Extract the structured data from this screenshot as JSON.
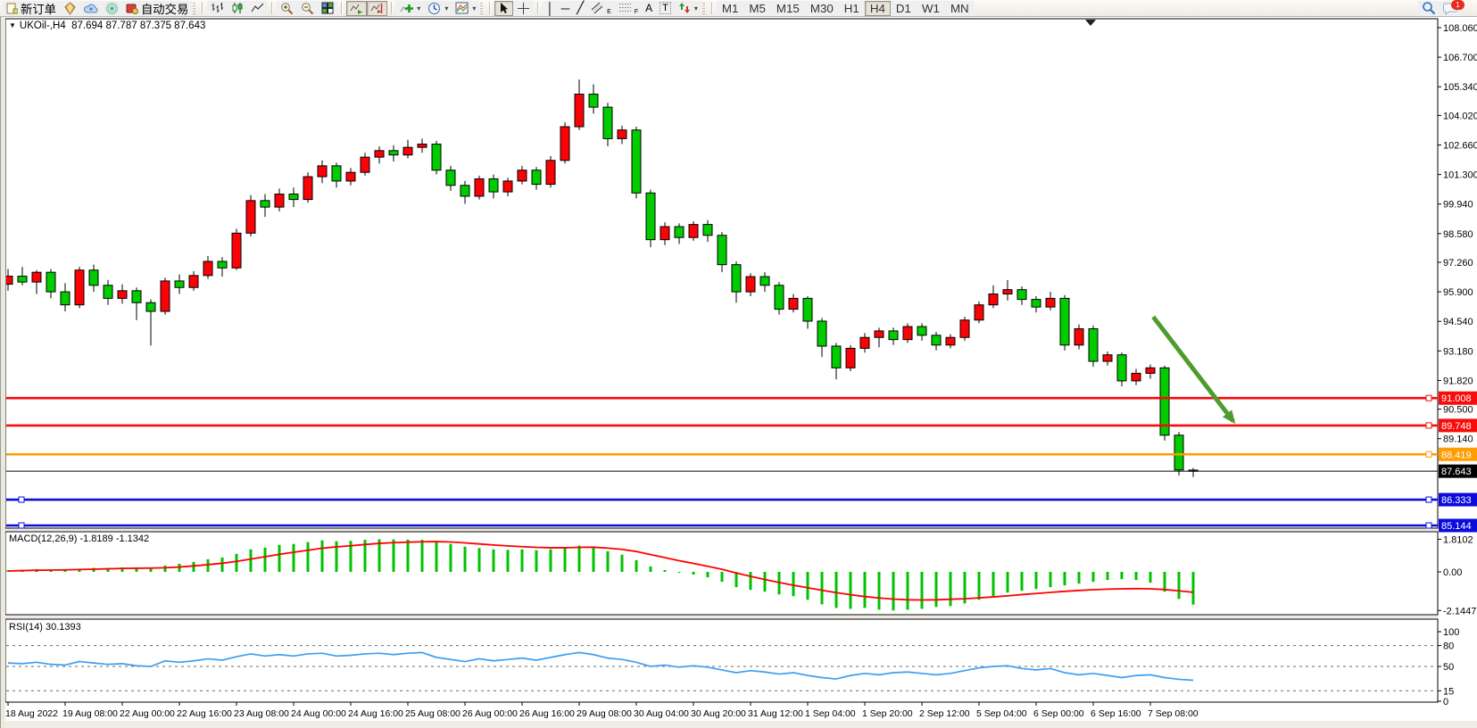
{
  "toolbar": {
    "new_order_label": "新订单",
    "autotrade_label": "自动交易",
    "notification_count": "1",
    "glyphs": {
      "caret": "▾",
      "vline": "│",
      "hline": "─",
      "trendline": "╱",
      "text_tool": "A",
      "text_label_tool": "T",
      "channel_tag": "E",
      "fibo_tag": "F"
    },
    "icon_names": [
      "new-order",
      "gold-diamond",
      "cloud",
      "signals",
      "autotrade",
      "bar-chart",
      "candlestick-chart",
      "line-chart",
      "zoom-in",
      "zoom-out",
      "tile-windows",
      "auto-scroll",
      "chart-shift",
      "indicators-add",
      "periods-clock",
      "templates",
      "cursor",
      "crosshair",
      "vertical-line",
      "horizontal-line",
      "trendline",
      "equidistant-channel",
      "fibonacci",
      "text",
      "text-label",
      "arrow-objects",
      "search",
      "notifications"
    ],
    "timeframes": [
      {
        "label": "M1",
        "active": false
      },
      {
        "label": "M5",
        "active": false
      },
      {
        "label": "M15",
        "active": false
      },
      {
        "label": "M30",
        "active": false
      },
      {
        "label": "H1",
        "active": false
      },
      {
        "label": "H4",
        "active": true
      },
      {
        "label": "D1",
        "active": false
      },
      {
        "label": "W1",
        "active": false
      },
      {
        "label": "MN",
        "active": false
      }
    ]
  },
  "chart": {
    "title": {
      "collapse_glyph": "▼",
      "symbol_tf": "UKOil-,H4",
      "ohlc": "87.694 87.787 87.375 87.643"
    },
    "macd_label": "MACD(12,26,9) -1.8189 -1.1342",
    "rsi_label": "RSI(14) 30.1393"
  },
  "chart_data": {
    "type": "candlestick",
    "symbol": "UKOil-",
    "timeframe": "H4",
    "ohlc_current": {
      "open": 87.694,
      "high": 87.787,
      "low": 87.375,
      "close": 87.643
    },
    "colors": {
      "up": "#fb0207",
      "down": "#00cc00",
      "wick": "#000000",
      "macd_hist": "#00c300",
      "macd_signal": "#fe0000",
      "rsi_line": "#3e9ef0",
      "arrow": "#4e9b2e",
      "level_red": "#f70b0b",
      "level_orange": "#ff9c00",
      "level_blue": "#0b0bdc",
      "current_line": "#000000"
    },
    "price_axis": {
      "ticks": [
        "108.060",
        "106.700",
        "105.340",
        "104.020",
        "102.660",
        "101.300",
        "99.940",
        "98.580",
        "97.260",
        "95.900",
        "94.540",
        "93.180",
        "91.820",
        "90.500",
        "89.140"
      ]
    },
    "levels": [
      {
        "label": "91.008",
        "price": 91.008,
        "color": "#f70b0b"
      },
      {
        "label": "89.748",
        "price": 89.748,
        "color": "#f70b0b"
      },
      {
        "label": "88.419",
        "price": 88.419,
        "color": "#ff9c00"
      },
      {
        "label": "86.333",
        "price": 86.333,
        "color": "#0b0bdc"
      },
      {
        "label": "85.144",
        "price": 85.144,
        "color": "#0b0bdc"
      }
    ],
    "current_price": {
      "label": "87.643",
      "price": 87.643
    },
    "time_axis": {
      "candles_per_label": 4,
      "labels": [
        "18 Aug 2022",
        "19 Aug 08:00",
        "22 Aug 00:00",
        "22 Aug 16:00",
        "23 Aug 08:00",
        "24 Aug 00:00",
        "24 Aug 16:00",
        "25 Aug 08:00",
        "26 Aug 00:00",
        "26 Aug 16:00",
        "29 Aug 08:00",
        "30 Aug 04:00",
        "30 Aug 20:00",
        "31 Aug 12:00",
        "1 Sep 04:00",
        "1 Sep 20:00",
        "2 Sep 12:00",
        "5 Sep 04:00",
        "6 Sep 00:00",
        "6 Sep 16:00",
        "7 Sep 08:00"
      ]
    },
    "candles": [
      [
        96.25,
        96.95,
        95.95,
        96.62
      ],
      [
        96.62,
        97.05,
        96.2,
        96.35
      ],
      [
        96.35,
        96.9,
        95.8,
        96.8
      ],
      [
        96.8,
        96.95,
        95.6,
        95.9
      ],
      [
        95.9,
        96.3,
        95.0,
        95.3
      ],
      [
        95.3,
        97.05,
        95.15,
        96.9
      ],
      [
        96.9,
        97.15,
        95.9,
        96.2
      ],
      [
        96.2,
        96.45,
        95.3,
        95.6
      ],
      [
        95.6,
        96.25,
        95.35,
        95.95
      ],
      [
        95.95,
        96.1,
        94.6,
        95.4
      ],
      [
        95.4,
        95.55,
        93.43,
        95.0
      ],
      [
        95.0,
        96.55,
        94.85,
        96.4
      ],
      [
        96.4,
        96.7,
        95.8,
        96.1
      ],
      [
        96.1,
        96.85,
        95.95,
        96.65
      ],
      [
        96.65,
        97.55,
        96.5,
        97.3
      ],
      [
        97.3,
        97.5,
        96.6,
        97.0
      ],
      [
        97.0,
        98.8,
        96.9,
        98.6
      ],
      [
        98.6,
        100.35,
        98.45,
        100.1
      ],
      [
        100.1,
        100.4,
        99.35,
        99.8
      ],
      [
        99.8,
        100.65,
        99.6,
        100.4
      ],
      [
        100.4,
        100.7,
        99.8,
        100.15
      ],
      [
        100.15,
        101.4,
        100.0,
        101.2
      ],
      [
        101.2,
        101.95,
        100.9,
        101.7
      ],
      [
        101.7,
        101.85,
        100.7,
        101.0
      ],
      [
        101.0,
        101.6,
        100.8,
        101.4
      ],
      [
        101.4,
        102.3,
        101.25,
        102.1
      ],
      [
        102.1,
        102.6,
        101.8,
        102.4
      ],
      [
        102.4,
        102.65,
        101.9,
        102.2
      ],
      [
        102.2,
        102.9,
        102.05,
        102.55
      ],
      [
        102.55,
        102.95,
        102.3,
        102.7
      ],
      [
        102.7,
        102.85,
        101.3,
        101.5
      ],
      [
        101.5,
        101.7,
        100.55,
        100.8
      ],
      [
        100.8,
        101.0,
        99.95,
        100.3
      ],
      [
        100.3,
        101.25,
        100.15,
        101.1
      ],
      [
        101.1,
        101.3,
        100.2,
        100.5
      ],
      [
        100.5,
        101.15,
        100.3,
        101.0
      ],
      [
        101.0,
        101.7,
        100.85,
        101.5
      ],
      [
        101.5,
        101.65,
        100.6,
        100.85
      ],
      [
        100.85,
        102.15,
        100.7,
        101.95
      ],
      [
        101.95,
        103.7,
        101.8,
        103.5
      ],
      [
        103.5,
        105.67,
        103.35,
        105.0
      ],
      [
        105.0,
        105.45,
        104.1,
        104.4
      ],
      [
        104.4,
        104.6,
        102.6,
        102.95
      ],
      [
        102.95,
        103.55,
        102.7,
        103.35
      ],
      [
        103.35,
        103.5,
        100.2,
        100.45
      ],
      [
        100.45,
        100.6,
        97.95,
        98.3
      ],
      [
        98.3,
        99.1,
        98.05,
        98.9
      ],
      [
        98.9,
        99.05,
        98.1,
        98.4
      ],
      [
        98.4,
        99.15,
        98.25,
        99.0
      ],
      [
        99.0,
        99.2,
        98.2,
        98.5
      ],
      [
        98.5,
        98.65,
        96.8,
        97.15
      ],
      [
        97.15,
        97.3,
        95.4,
        95.9
      ],
      [
        95.9,
        96.75,
        95.7,
        96.6
      ],
      [
        96.6,
        96.8,
        95.9,
        96.2
      ],
      [
        96.2,
        96.35,
        94.85,
        95.1
      ],
      [
        95.1,
        95.8,
        94.95,
        95.6
      ],
      [
        95.6,
        95.7,
        94.2,
        94.55
      ],
      [
        94.55,
        94.7,
        92.9,
        93.4
      ],
      [
        93.4,
        93.55,
        91.87,
        92.4
      ],
      [
        92.4,
        93.45,
        92.25,
        93.3
      ],
      [
        93.3,
        94.0,
        93.1,
        93.8
      ],
      [
        93.8,
        94.25,
        93.35,
        94.1
      ],
      [
        94.1,
        94.25,
        93.45,
        93.7
      ],
      [
        93.7,
        94.45,
        93.55,
        94.3
      ],
      [
        94.3,
        94.45,
        93.65,
        93.9
      ],
      [
        93.9,
        94.05,
        93.2,
        93.45
      ],
      [
        93.45,
        93.95,
        93.3,
        93.8
      ],
      [
        93.8,
        94.75,
        93.65,
        94.6
      ],
      [
        94.6,
        95.45,
        94.45,
        95.3
      ],
      [
        95.3,
        96.2,
        95.15,
        95.8
      ],
      [
        95.8,
        96.44,
        95.5,
        96.0
      ],
      [
        96.0,
        96.15,
        95.3,
        95.55
      ],
      [
        95.55,
        95.7,
        94.95,
        95.2
      ],
      [
        95.2,
        95.9,
        95.05,
        95.6
      ],
      [
        95.6,
        95.75,
        93.2,
        93.45
      ],
      [
        93.45,
        94.4,
        93.25,
        94.2
      ],
      [
        94.2,
        94.35,
        92.45,
        92.7
      ],
      [
        92.7,
        93.15,
        92.5,
        93.0
      ],
      [
        93.0,
        93.1,
        91.55,
        91.8
      ],
      [
        91.8,
        92.35,
        91.6,
        92.15
      ],
      [
        92.15,
        92.55,
        91.9,
        92.4
      ],
      [
        92.4,
        92.5,
        89.05,
        89.3
      ],
      [
        89.3,
        89.45,
        87.45,
        87.7
      ],
      [
        87.694,
        87.787,
        87.375,
        87.643
      ]
    ],
    "trend_arrow": {
      "from_candle": 80.2,
      "from_price": 94.75,
      "to_candle": 85.8,
      "to_price": 89.95
    },
    "macd": {
      "params": "12,26,9",
      "value": -1.8189,
      "signal_value": -1.1342,
      "axis_ticks": [
        "1.8102",
        "0.00",
        "-2.1447"
      ],
      "axis_values": [
        1.8102,
        0,
        -2.1447
      ],
      "histogram": [
        0.1,
        0.12,
        0.15,
        0.13,
        0.1,
        0.18,
        0.22,
        0.2,
        0.25,
        0.22,
        0.2,
        0.35,
        0.45,
        0.55,
        0.7,
        0.8,
        1.0,
        1.25,
        1.35,
        1.5,
        1.55,
        1.65,
        1.75,
        1.7,
        1.72,
        1.78,
        1.81,
        1.8,
        1.79,
        1.78,
        1.7,
        1.55,
        1.4,
        1.32,
        1.25,
        1.22,
        1.25,
        1.2,
        1.25,
        1.35,
        1.45,
        1.4,
        1.15,
        0.95,
        0.65,
        0.3,
        0.1,
        -0.05,
        -0.15,
        -0.3,
        -0.55,
        -0.85,
        -1.0,
        -1.1,
        -1.25,
        -1.35,
        -1.55,
        -1.8,
        -2.0,
        -2.05,
        -2.0,
        -2.1,
        -2.14,
        -2.1,
        -2.05,
        -1.95,
        -1.9,
        -1.75,
        -1.55,
        -1.35,
        -1.15,
        -1.05,
        -0.95,
        -0.85,
        -0.75,
        -0.65,
        -0.55,
        -0.45,
        -0.4,
        -0.45,
        -0.6,
        -1.1,
        -1.5,
        -1.8189
      ],
      "signal": [
        0.05,
        0.07,
        0.09,
        0.1,
        0.11,
        0.13,
        0.15,
        0.17,
        0.19,
        0.2,
        0.21,
        0.23,
        0.27,
        0.33,
        0.4,
        0.48,
        0.58,
        0.71,
        0.84,
        0.97,
        1.09,
        1.2,
        1.31,
        1.39,
        1.45,
        1.52,
        1.58,
        1.62,
        1.65,
        1.67,
        1.68,
        1.66,
        1.61,
        1.55,
        1.49,
        1.44,
        1.4,
        1.36,
        1.34,
        1.34,
        1.36,
        1.37,
        1.32,
        1.25,
        1.13,
        0.96,
        0.79,
        0.62,
        0.47,
        0.31,
        0.14,
        -0.06,
        -0.25,
        -0.42,
        -0.59,
        -0.74,
        -0.88,
        -1.02,
        -1.15,
        -1.27,
        -1.37,
        -1.45,
        -1.51,
        -1.55,
        -1.56,
        -1.55,
        -1.52,
        -1.49,
        -1.44,
        -1.39,
        -1.33,
        -1.26,
        -1.2,
        -1.14,
        -1.08,
        -1.03,
        -0.99,
        -0.96,
        -0.94,
        -0.93,
        -0.94,
        -0.98,
        -1.05,
        -1.1342
      ]
    },
    "rsi": {
      "period": 14,
      "value": 30.1393,
      "axis_ticks": [
        "100",
        "80",
        "50",
        "15",
        "0"
      ],
      "axis_values": [
        100,
        80,
        50,
        15,
        0
      ],
      "dashed_levels": [
        80,
        50,
        15
      ],
      "values": [
        55,
        54,
        56,
        53,
        52,
        57,
        55,
        53,
        54,
        51,
        50,
        58,
        56,
        58,
        61,
        59,
        64,
        68,
        65,
        67,
        65,
        68,
        69,
        65,
        66,
        68,
        69,
        67,
        69,
        70,
        63,
        60,
        57,
        61,
        58,
        60,
        62,
        59,
        63,
        67,
        70,
        67,
        62,
        60,
        56,
        50,
        52,
        49,
        51,
        49,
        45,
        41,
        44,
        42,
        39,
        41,
        37,
        34,
        32,
        37,
        40,
        38,
        41,
        42,
        40,
        38,
        40,
        44,
        48,
        50,
        51,
        47,
        45,
        47,
        41,
        38,
        40,
        37,
        34,
        37,
        38,
        34,
        31.5,
        30.1393
      ]
    }
  }
}
